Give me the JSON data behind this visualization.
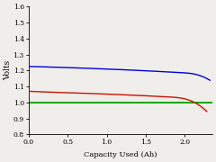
{
  "title": "",
  "xlabel": "Capacity Used (Ah)",
  "ylabel": "Volts",
  "xlim": [
    0,
    2.35
  ],
  "ylim": [
    0.8,
    1.6
  ],
  "xticks": [
    0,
    0.5,
    1.0,
    1.5,
    2.0
  ],
  "yticks": [
    0.8,
    0.9,
    1.0,
    1.1,
    1.2,
    1.3,
    1.4,
    1.5,
    1.6
  ],
  "cutoff_voltage": 1.0,
  "blue_color": "#0000dd",
  "red_color": "#cc1100",
  "green_color": "#00aa00",
  "line_width": 1.0,
  "background_color": "#f0eeea",
  "figsize": [
    2.4,
    1.8
  ],
  "dpi": 100
}
